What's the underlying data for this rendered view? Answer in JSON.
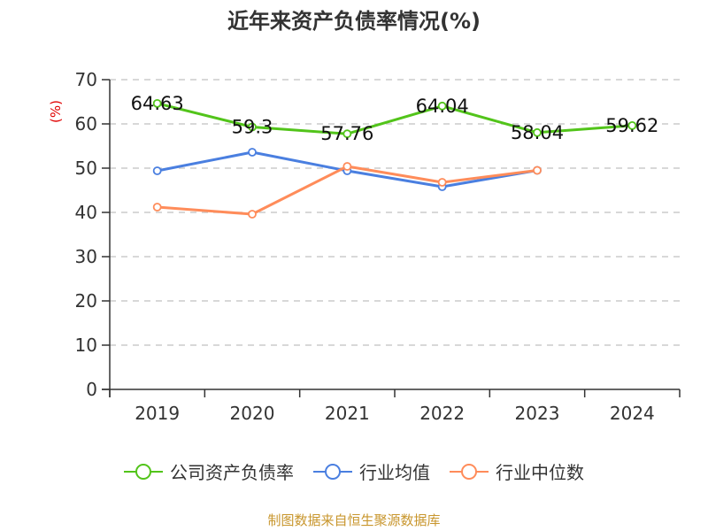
{
  "title": "近年来资产负债率情况(%)",
  "source": "制图数据来自恒生聚源数据库",
  "colors": {
    "company": "#52c41a",
    "industry_avg": "#4a7fe0",
    "industry_median": "#ff8c5a",
    "unit_label": "#e00000",
    "source_text": "#c8962d"
  },
  "legend": [
    {
      "label": "公司资产负债率",
      "color": "#52c41a"
    },
    {
      "label": "行业均值",
      "color": "#4a7fe0"
    },
    {
      "label": "行业中位数",
      "color": "#ff8c5a"
    }
  ],
  "chart_data": {
    "type": "line",
    "title": "近年来资产负债率情况(%)",
    "xlabel": "",
    "ylabel": "(%)",
    "categories": [
      "2019",
      "2020",
      "2021",
      "2022",
      "2023",
      "2024"
    ],
    "ylim": [
      0,
      70
    ],
    "yticks": [
      0,
      10,
      20,
      30,
      40,
      50,
      60,
      70
    ],
    "grid": true,
    "legend_position": "bottom",
    "series": [
      {
        "name": "公司资产负债率",
        "values": [
          64.63,
          59.3,
          57.76,
          64.04,
          58.04,
          59.62
        ],
        "labels": [
          "64.63",
          "59.3",
          "57.76",
          "64.04",
          "58.04",
          "59.62"
        ]
      },
      {
        "name": "行业均值",
        "values": [
          49.4,
          53.6,
          49.4,
          45.8,
          49.5,
          null
        ]
      },
      {
        "name": "行业中位数",
        "values": [
          41.2,
          39.6,
          50.4,
          46.8,
          49.5,
          null
        ]
      }
    ]
  }
}
